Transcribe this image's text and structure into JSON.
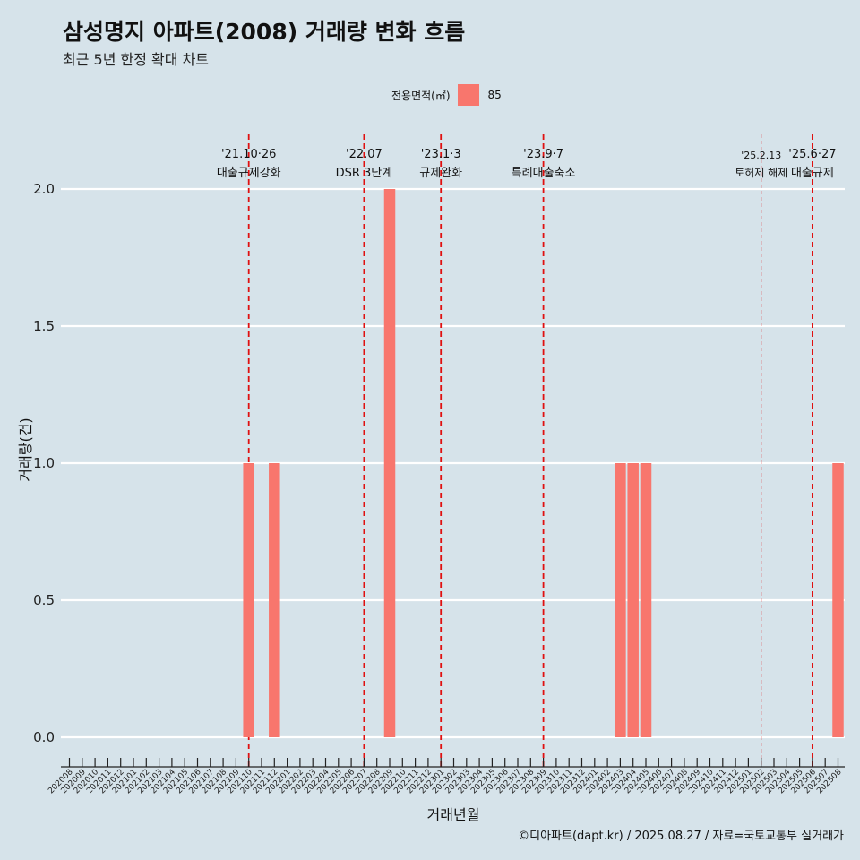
{
  "header": {
    "title": "삼성명지 아파트(2008) 거래량 변화 흐름",
    "subtitle": "최근 5년 한정 확대 차트"
  },
  "legend": {
    "title": "전용면적(㎡)",
    "label": "85",
    "color": "#f8766d"
  },
  "caption": "©디아파트(dapt.kr) / 2025.08.27 / 자료=국토교통부 실거래가",
  "chart_data": {
    "type": "bar",
    "xlabel": "거래년월",
    "ylabel": "거래량(건)",
    "ylim": [
      0,
      2.0
    ],
    "yticks": [
      "0.0",
      "0.5",
      "1.0",
      "1.5",
      "2.0"
    ],
    "grid": "horizontal",
    "legend_position": "top",
    "categories": [
      "202008",
      "202009",
      "202010",
      "202011",
      "202012",
      "202101",
      "202102",
      "202103",
      "202104",
      "202105",
      "202106",
      "202107",
      "202108",
      "202109",
      "202110",
      "202111",
      "202112",
      "202201",
      "202202",
      "202203",
      "202204",
      "202205",
      "202206",
      "202207",
      "202208",
      "202209",
      "202210",
      "202211",
      "202212",
      "202301",
      "202302",
      "202303",
      "202304",
      "202305",
      "202306",
      "202307",
      "202308",
      "202309",
      "202310",
      "202311",
      "202312",
      "202401",
      "202402",
      "202403",
      "202404",
      "202405",
      "202406",
      "202407",
      "202408",
      "202409",
      "202410",
      "202411",
      "202412",
      "202501",
      "202502",
      "202503",
      "202504",
      "202505",
      "202506",
      "202507",
      "202508"
    ],
    "series": [
      {
        "name": "85",
        "color": "#f8766d",
        "values": [
          0,
          0,
          0,
          0,
          0,
          0,
          0,
          0,
          0,
          0,
          0,
          0,
          0,
          0,
          1,
          0,
          1,
          0,
          0,
          0,
          0,
          0,
          0,
          0,
          0,
          2,
          0,
          0,
          0,
          0,
          0,
          0,
          0,
          0,
          0,
          0,
          0,
          0,
          0,
          0,
          0,
          0,
          0,
          1,
          1,
          1,
          0,
          0,
          0,
          0,
          0,
          0,
          0,
          0,
          0,
          0,
          0,
          0,
          0,
          0,
          1
        ]
      }
    ],
    "annotations": [
      {
        "x": "202110",
        "date": "'21.10·26",
        "text": "대출규제강화",
        "emphasis": "strong"
      },
      {
        "x": "202207",
        "date": "'22.07",
        "text": "DSR 3단계",
        "emphasis": "strong"
      },
      {
        "x": "202301",
        "date": "'23.1·3",
        "text": "규제완화",
        "emphasis": "strong"
      },
      {
        "x": "202309",
        "date": "'23.9·7",
        "text": "특례대출축소",
        "emphasis": "strong"
      },
      {
        "x": "202502",
        "date": "'25.2.13",
        "text": "토허제 해제",
        "emphasis": "light"
      },
      {
        "x": "202506",
        "date": "'25.6·27",
        "text": "대출규제",
        "emphasis": "strong"
      }
    ]
  }
}
